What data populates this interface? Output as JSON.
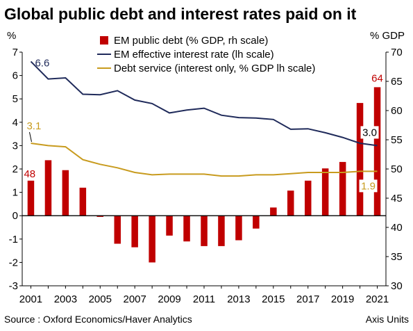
{
  "chart_data": {
    "type": "bar-line-combo",
    "title": "Global public debt and interest rates paid on it",
    "left_axis_label": "%",
    "right_axis_label": "% GDP",
    "left_ylim": [
      -3,
      7
    ],
    "right_ylim": [
      30,
      70
    ],
    "left_ticks": [
      -3,
      -2,
      -1,
      0,
      1,
      2,
      3,
      4,
      5,
      6,
      7
    ],
    "right_ticks": [
      30,
      35,
      40,
      45,
      50,
      55,
      60,
      65,
      70
    ],
    "x": [
      2001,
      2002,
      2003,
      2004,
      2005,
      2006,
      2007,
      2008,
      2009,
      2010,
      2011,
      2012,
      2013,
      2014,
      2015,
      2016,
      2017,
      2018,
      2019,
      2020,
      2021
    ],
    "x_tick_labels": [
      "2001",
      "2003",
      "2005",
      "2007",
      "2009",
      "2011",
      "2013",
      "2015",
      "2017",
      "2019",
      "2021"
    ],
    "series": [
      {
        "name": "EM public debt (% GDP, rh scale)",
        "kind": "bar",
        "axis": "right",
        "color": "#c00000",
        "values": [
          48,
          51.5,
          49.8,
          46.8,
          41.8,
          37.2,
          36.6,
          34,
          38.6,
          37.6,
          36.8,
          36.8,
          37.8,
          39.8,
          43.4,
          46.3,
          48,
          50.1,
          51.2,
          61.3,
          64
        ]
      },
      {
        "name": "EM effective interest rate (lh scale)",
        "kind": "line",
        "axis": "left",
        "color": "#1f2a5a",
        "values": [
          6.6,
          5.85,
          5.9,
          5.2,
          5.18,
          5.35,
          4.95,
          4.8,
          4.4,
          4.52,
          4.6,
          4.3,
          4.2,
          4.18,
          4.12,
          3.7,
          3.72,
          3.55,
          3.35,
          3.1,
          3.0
        ]
      },
      {
        "name": "Debt service (interest only, % GDP lh scale)",
        "kind": "line",
        "axis": "left",
        "color": "#c89b1e",
        "values": [
          3.1,
          3.0,
          2.95,
          2.4,
          2.2,
          2.05,
          1.85,
          1.75,
          1.78,
          1.78,
          1.78,
          1.7,
          1.7,
          1.75,
          1.75,
          1.8,
          1.85,
          1.85,
          1.85,
          1.9,
          1.9
        ]
      }
    ],
    "annotations": [
      {
        "text": "6.6",
        "series": 1,
        "index": 0
      },
      {
        "text": "3.1",
        "series": 2,
        "index": 0
      },
      {
        "text": "48",
        "series": 0,
        "index": 0
      },
      {
        "text": "64",
        "series": 0,
        "index": 20
      },
      {
        "text": "3.0",
        "series": 1,
        "index": 20
      },
      {
        "text": "1.9",
        "series": 2,
        "index": 20
      }
    ],
    "zero_line": true,
    "grid": false,
    "legend_position": "top"
  },
  "footer": {
    "source": "Source : Oxford Economics/Haver Analytics",
    "axis_units": "Axis Units"
  }
}
